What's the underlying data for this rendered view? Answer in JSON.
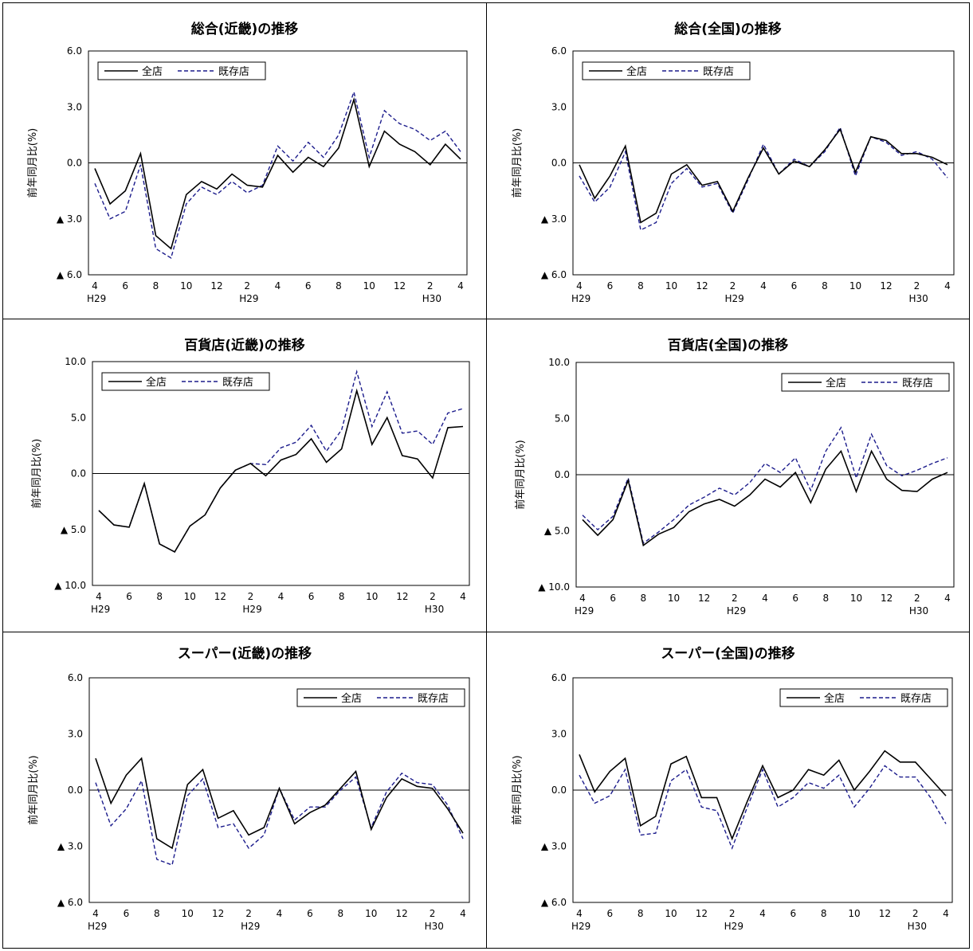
{
  "legend": {
    "all_stores": "全店",
    "existing_stores": "既存店"
  },
  "colors": {
    "all_stores": "#000000",
    "existing_stores": "#1c1c8c"
  },
  "chart_data": [
    {
      "type": "line",
      "title": "総合(近畿)の推移",
      "ylabel": "前年同月比(%)",
      "ylim": [
        -6,
        6
      ],
      "yticks": [
        6,
        3,
        0,
        -3,
        -6
      ],
      "ytick_labels": [
        "6.0",
        "3.0",
        "0.0",
        "▲ 3.0",
        "▲ 6.0"
      ],
      "x_tick_labels": [
        "4",
        "",
        "6",
        "",
        "8",
        "",
        "10",
        "",
        "12",
        "",
        "2",
        "",
        "4",
        "",
        "6",
        "",
        "8",
        "",
        "10",
        "",
        "12",
        "",
        "2",
        "",
        "4"
      ],
      "x_year_labels": [
        {
          "index": 0,
          "label": "H29"
        },
        {
          "index": 10,
          "label": "H29"
        },
        {
          "index": 22,
          "label": "H30"
        }
      ],
      "legend_position": "top-left",
      "series": [
        {
          "name": "全店",
          "values": [
            -0.3,
            -2.2,
            -1.5,
            0.5,
            -3.9,
            -4.6,
            -1.7,
            -1.0,
            -1.4,
            -0.6,
            -1.2,
            -1.3,
            0.4,
            -0.5,
            0.3,
            -0.2,
            0.8,
            3.4,
            -0.2,
            1.7,
            1.0,
            0.6,
            -0.1,
            1.0,
            0.2
          ]
        },
        {
          "name": "既存店",
          "values": [
            -1.1,
            -3.0,
            -2.6,
            -0.1,
            -4.6,
            -5.1,
            -2.2,
            -1.3,
            -1.7,
            -1.0,
            -1.6,
            -1.2,
            0.9,
            0.1,
            1.1,
            0.3,
            1.5,
            3.8,
            0.3,
            2.8,
            2.1,
            1.8,
            1.2,
            1.7,
            0.6
          ]
        }
      ]
    },
    {
      "type": "line",
      "title": "総合(全国)の推移",
      "ylabel": "前年同月比(%)",
      "ylim": [
        -6,
        6
      ],
      "yticks": [
        6,
        3,
        0,
        -3,
        -6
      ],
      "ytick_labels": [
        "6.0",
        "3.0",
        "0.0",
        "▲ 3.0",
        "▲ 6.0"
      ],
      "x_tick_labels": [
        "4",
        "",
        "6",
        "",
        "8",
        "",
        "10",
        "",
        "12",
        "",
        "2",
        "",
        "4",
        "",
        "6",
        "",
        "8",
        "",
        "10",
        "",
        "12",
        "",
        "2",
        "",
        "4"
      ],
      "x_year_labels": [
        {
          "index": 0,
          "label": "H29"
        },
        {
          "index": 10,
          "label": "H29"
        },
        {
          "index": 22,
          "label": "H30"
        }
      ],
      "legend_position": "top-left",
      "series": [
        {
          "name": "全店",
          "values": [
            -0.1,
            -1.9,
            -0.7,
            0.9,
            -3.2,
            -2.7,
            -0.6,
            -0.1,
            -1.2,
            -1.0,
            -2.6,
            -0.8,
            0.8,
            -0.6,
            0.1,
            -0.2,
            0.7,
            1.8,
            -0.5,
            1.4,
            1.2,
            0.5,
            0.5,
            0.3,
            -0.1
          ]
        },
        {
          "name": "既存店",
          "values": [
            -0.7,
            -2.1,
            -1.3,
            0.6,
            -3.6,
            -3.2,
            -1.1,
            -0.3,
            -1.3,
            -1.1,
            -2.7,
            -0.9,
            1.0,
            -0.6,
            0.2,
            -0.2,
            0.6,
            1.9,
            -0.7,
            1.4,
            1.1,
            0.4,
            0.6,
            0.2,
            -0.8
          ]
        }
      ]
    },
    {
      "type": "line",
      "title": "百貨店(近畿)の推移",
      "ylabel": "前年同月比(%)",
      "ylim": [
        -10,
        10
      ],
      "yticks": [
        10,
        5,
        0,
        -5,
        -10
      ],
      "ytick_labels": [
        "10.0",
        "5.0",
        "0.0",
        "▲ 5.0",
        "▲ 10.0"
      ],
      "x_tick_labels": [
        "4",
        "",
        "6",
        "",
        "8",
        "",
        "10",
        "",
        "12",
        "",
        "2",
        "",
        "4",
        "",
        "6",
        "",
        "8",
        "",
        "10",
        "",
        "12",
        "",
        "2",
        "",
        "4"
      ],
      "x_year_labels": [
        {
          "index": 0,
          "label": "H29"
        },
        {
          "index": 10,
          "label": "H29"
        },
        {
          "index": 22,
          "label": "H30"
        }
      ],
      "legend_position": "top-left",
      "series": [
        {
          "name": "全店",
          "values": [
            -3.3,
            -4.6,
            -4.8,
            -0.9,
            -6.3,
            -7.0,
            -4.7,
            -3.7,
            -1.3,
            0.3,
            0.9,
            -0.2,
            1.2,
            1.7,
            3.1,
            1.0,
            2.2,
            7.4,
            2.6,
            5.0,
            1.6,
            1.3,
            -0.4,
            4.1,
            4.2
          ]
        },
        {
          "name": "既存店",
          "values": [
            -3.3,
            -4.6,
            -4.8,
            -0.9,
            -6.3,
            -7.0,
            -4.7,
            -3.7,
            -1.3,
            0.3,
            0.9,
            0.8,
            2.3,
            2.8,
            4.3,
            2.0,
            3.9,
            9.1,
            4.2,
            7.3,
            3.6,
            3.8,
            2.6,
            5.4,
            5.8
          ]
        }
      ]
    },
    {
      "type": "line",
      "title": "百貨店(全国)の推移",
      "ylabel": "前年同月比(%)",
      "ylim": [
        -10,
        10
      ],
      "yticks": [
        10,
        5,
        0,
        -5,
        -10
      ],
      "ytick_labels": [
        "10.0",
        "5.0",
        "0.0",
        "▲ 5.0",
        "▲ 10.0"
      ],
      "x_tick_labels": [
        "4",
        "",
        "6",
        "",
        "8",
        "",
        "10",
        "",
        "12",
        "",
        "2",
        "",
        "4",
        "",
        "6",
        "",
        "8",
        "",
        "10",
        "",
        "12",
        "",
        "2",
        "",
        "4"
      ],
      "x_year_labels": [
        {
          "index": 0,
          "label": "H29"
        },
        {
          "index": 10,
          "label": "H29"
        },
        {
          "index": 22,
          "label": "H30"
        }
      ],
      "legend_position": "top-right",
      "series": [
        {
          "name": "全店",
          "values": [
            -4.0,
            -5.4,
            -4.0,
            -0.5,
            -6.3,
            -5.3,
            -4.7,
            -3.3,
            -2.6,
            -2.2,
            -2.8,
            -1.8,
            -0.4,
            -1.1,
            0.2,
            -2.5,
            0.5,
            2.1,
            -1.5,
            2.1,
            -0.4,
            -1.4,
            -1.5,
            -0.4,
            0.2
          ]
        },
        {
          "name": "既存店",
          "values": [
            -3.6,
            -4.9,
            -3.7,
            -0.3,
            -6.1,
            -5.1,
            -4.0,
            -2.7,
            -2.0,
            -1.2,
            -1.8,
            -0.7,
            1.0,
            0.2,
            1.5,
            -1.4,
            2.1,
            4.2,
            -0.3,
            3.6,
            0.8,
            -0.1,
            0.4,
            1.0,
            1.5
          ]
        }
      ]
    },
    {
      "type": "line",
      "title": "スーパー(近畿)の推移",
      "ylabel": "前年同月比(%)",
      "ylim": [
        -6,
        6
      ],
      "yticks": [
        6,
        3,
        0,
        -3,
        -6
      ],
      "ytick_labels": [
        "6.0",
        "3.0",
        "0.0",
        "▲ 3.0",
        "▲ 6.0"
      ],
      "x_tick_labels": [
        "4",
        "",
        "6",
        "",
        "8",
        "",
        "10",
        "",
        "12",
        "",
        "2",
        "",
        "4",
        "",
        "6",
        "",
        "8",
        "",
        "10",
        "",
        "12",
        "",
        "2",
        "",
        "4"
      ],
      "x_year_labels": [
        {
          "index": 0,
          "label": "H29"
        },
        {
          "index": 10,
          "label": "H29"
        },
        {
          "index": 22,
          "label": "H30"
        }
      ],
      "legend_position": "top-right",
      "series": [
        {
          "name": "全店",
          "values": [
            1.7,
            -0.7,
            0.8,
            1.7,
            -2.6,
            -3.1,
            0.3,
            1.1,
            -1.5,
            -1.1,
            -2.4,
            -2.0,
            0.1,
            -1.8,
            -1.2,
            -0.8,
            0.1,
            1.0,
            -2.1,
            -0.4,
            0.6,
            0.2,
            0.1,
            -1.0,
            -2.3
          ]
        },
        {
          "name": "既存店",
          "values": [
            0.4,
            -1.9,
            -1.0,
            0.5,
            -3.7,
            -4.0,
            -0.3,
            0.6,
            -2.0,
            -1.8,
            -3.1,
            -2.4,
            0.1,
            -1.6,
            -0.9,
            -0.9,
            0.0,
            0.7,
            -2.0,
            -0.1,
            0.9,
            0.4,
            0.3,
            -0.8,
            -2.6
          ]
        }
      ]
    },
    {
      "type": "line",
      "title": "スーパー(全国)の推移",
      "ylabel": "前年同月比(%)",
      "ylim": [
        -6,
        6
      ],
      "yticks": [
        6,
        3,
        0,
        -3,
        -6
      ],
      "ytick_labels": [
        "6.0",
        "3.0",
        "0.0",
        "▲ 3.0",
        "▲ 6.0"
      ],
      "x_tick_labels": [
        "4",
        "",
        "6",
        "",
        "8",
        "",
        "10",
        "",
        "12",
        "",
        "2",
        "",
        "4",
        "",
        "6",
        "",
        "8",
        "",
        "10",
        "",
        "12",
        "",
        "2",
        "",
        "4"
      ],
      "x_year_labels": [
        {
          "index": 0,
          "label": "H29"
        },
        {
          "index": 10,
          "label": "H29"
        },
        {
          "index": 22,
          "label": "H30"
        }
      ],
      "legend_position": "top-right",
      "series": [
        {
          "name": "全店",
          "values": [
            1.9,
            -0.1,
            1.0,
            1.7,
            -1.9,
            -1.4,
            1.4,
            1.8,
            -0.4,
            -0.4,
            -2.6,
            -0.6,
            1.3,
            -0.4,
            0.0,
            1.1,
            0.8,
            1.6,
            0.0,
            1.0,
            2.1,
            1.5,
            1.5,
            0.6,
            -0.3
          ]
        },
        {
          "name": "既存店",
          "values": [
            0.8,
            -0.7,
            -0.3,
            1.1,
            -2.4,
            -2.3,
            0.5,
            1.1,
            -0.9,
            -1.1,
            -3.1,
            -0.9,
            1.1,
            -0.9,
            -0.4,
            0.4,
            0.1,
            0.8,
            -0.9,
            0.1,
            1.3,
            0.7,
            0.7,
            -0.4,
            -1.8
          ]
        }
      ]
    }
  ]
}
